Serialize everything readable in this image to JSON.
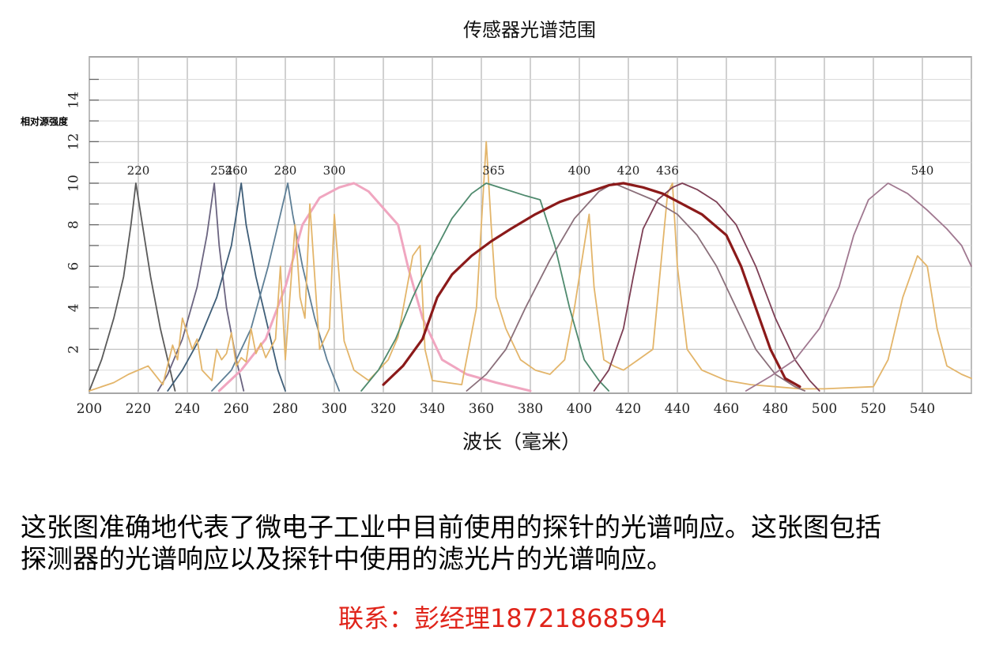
{
  "chart_data": {
    "type": "line",
    "title": "传感器光谱范围",
    "xlabel": "波长（毫米）",
    "ylabel": "相对源强度",
    "x_ticks": [
      "200",
      "220",
      "240",
      "260",
      "280",
      "300",
      "320",
      "340",
      "360",
      "380",
      "400",
      "420",
      "440",
      "460",
      "480",
      "500",
      "520",
      "540"
    ],
    "y_ticks": [
      "2",
      "4",
      "6",
      "8",
      "10",
      "12",
      "14"
    ],
    "xlim": [
      200,
      560
    ],
    "ylim": [
      0,
      15
    ],
    "grid": true,
    "peak_labels": [
      "220",
      "254",
      "260",
      "280",
      "300",
      "365",
      "400",
      "420",
      "436",
      "540"
    ],
    "series": [
      {
        "color": "#5a5a5a",
        "points": [
          [
            200,
            0
          ],
          [
            205,
            1.5
          ],
          [
            210,
            3.5
          ],
          [
            214,
            5.5
          ],
          [
            217,
            8
          ],
          [
            219,
            10
          ],
          [
            221,
            8.5
          ],
          [
            225,
            5.5
          ],
          [
            229,
            3
          ],
          [
            233,
            1
          ],
          [
            235,
            0
          ]
        ]
      },
      {
        "color": "#6b6480",
        "points": [
          [
            228,
            0
          ],
          [
            232,
            0.8
          ],
          [
            238,
            2.5
          ],
          [
            244,
            5
          ],
          [
            248,
            7.5
          ],
          [
            251,
            10
          ],
          [
            253,
            7
          ],
          [
            256,
            4
          ],
          [
            260,
            1.5
          ],
          [
            263,
            0
          ]
        ]
      },
      {
        "color": "#3f5e78",
        "points": [
          [
            232,
            0
          ],
          [
            238,
            1
          ],
          [
            245,
            2.5
          ],
          [
            252,
            4.5
          ],
          [
            258,
            7
          ],
          [
            262,
            10
          ],
          [
            264,
            8
          ],
          [
            268,
            5.5
          ],
          [
            273,
            3
          ],
          [
            277,
            1
          ],
          [
            280,
            0
          ]
        ]
      },
      {
        "color": "#5e7f96",
        "points": [
          [
            250,
            0
          ],
          [
            258,
            1
          ],
          [
            266,
            3
          ],
          [
            273,
            6
          ],
          [
            278,
            8.5
          ],
          [
            281,
            10
          ],
          [
            283,
            8.5
          ],
          [
            287,
            6
          ],
          [
            292,
            3.5
          ],
          [
            297,
            1.5
          ],
          [
            302,
            0
          ]
        ]
      },
      {
        "color": "#f0a6c0",
        "points": [
          [
            253,
            0
          ],
          [
            262,
            1
          ],
          [
            272,
            2.5
          ],
          [
            280,
            5
          ],
          [
            287,
            8
          ],
          [
            294,
            9.3
          ],
          [
            302,
            9.8
          ],
          [
            308,
            10
          ],
          [
            314,
            9.6
          ],
          [
            320,
            8.8
          ],
          [
            326,
            8
          ],
          [
            330,
            6
          ],
          [
            336,
            3.5
          ],
          [
            344,
            1.5
          ],
          [
            354,
            0.8
          ],
          [
            366,
            0.4
          ],
          [
            380,
            0
          ]
        ]
      },
      {
        "color": "#e3b56a",
        "points": [
          [
            200,
            0
          ],
          [
            210,
            0.4
          ],
          [
            216,
            0.8
          ],
          [
            224,
            1.2
          ],
          [
            230,
            0.3
          ],
          [
            234,
            2.2
          ],
          [
            236,
            1.5
          ],
          [
            238,
            3.5
          ],
          [
            242,
            2
          ],
          [
            244,
            2.5
          ],
          [
            246,
            1
          ],
          [
            250,
            0.5
          ],
          [
            252,
            2
          ],
          [
            254,
            1.5
          ],
          [
            256,
            1.8
          ],
          [
            258,
            2.8
          ],
          [
            260,
            1.2
          ],
          [
            262,
            1.6
          ],
          [
            264,
            1.4
          ],
          [
            266,
            3
          ],
          [
            268,
            1.8
          ],
          [
            270,
            2.3
          ],
          [
            272,
            1.6
          ],
          [
            276,
            2.5
          ],
          [
            278,
            6
          ],
          [
            280,
            1.5
          ],
          [
            284,
            8
          ],
          [
            286,
            4.5
          ],
          [
            288,
            3.5
          ],
          [
            290,
            9
          ],
          [
            294,
            2
          ],
          [
            298,
            3
          ],
          [
            300,
            8.5
          ],
          [
            304,
            2.4
          ],
          [
            308,
            1
          ],
          [
            314,
            0.5
          ],
          [
            322,
            1.5
          ],
          [
            326,
            2.6
          ],
          [
            332,
            6.5
          ],
          [
            335,
            7
          ],
          [
            337,
            2
          ],
          [
            340,
            0.5
          ],
          [
            346,
            0.4
          ],
          [
            352,
            0.3
          ],
          [
            358,
            4
          ],
          [
            362,
            12
          ],
          [
            364,
            8
          ],
          [
            366,
            4.5
          ],
          [
            370,
            3
          ],
          [
            376,
            1.5
          ],
          [
            382,
            1
          ],
          [
            388,
            0.8
          ],
          [
            394,
            1.5
          ],
          [
            398,
            4
          ],
          [
            402,
            7
          ],
          [
            404,
            8.5
          ],
          [
            406,
            5
          ],
          [
            410,
            1.5
          ],
          [
            414,
            1.2
          ],
          [
            418,
            1
          ],
          [
            424,
            1.5
          ],
          [
            430,
            2
          ],
          [
            436,
            9.5
          ],
          [
            438,
            10
          ],
          [
            440,
            6
          ],
          [
            444,
            2
          ],
          [
            450,
            1
          ],
          [
            460,
            0.5
          ],
          [
            470,
            0.3
          ],
          [
            480,
            0.2
          ],
          [
            490,
            0.1
          ],
          [
            500,
            0.1
          ],
          [
            520,
            0.2
          ],
          [
            526,
            1.5
          ],
          [
            532,
            4.5
          ],
          [
            538,
            6.5
          ],
          [
            542,
            6
          ],
          [
            546,
            3
          ],
          [
            550,
            1.2
          ],
          [
            556,
            0.8
          ],
          [
            560,
            0.6
          ]
        ]
      },
      {
        "color": "#4f8a6e",
        "points": [
          [
            311,
            0
          ],
          [
            318,
            1
          ],
          [
            325,
            2.5
          ],
          [
            332,
            4.5
          ],
          [
            340,
            6.5
          ],
          [
            348,
            8.3
          ],
          [
            356,
            9.5
          ],
          [
            362,
            10
          ],
          [
            370,
            9.7
          ],
          [
            378,
            9.4
          ],
          [
            384,
            9.2
          ],
          [
            390,
            7
          ],
          [
            396,
            4
          ],
          [
            402,
            1.5
          ],
          [
            408,
            0.5
          ],
          [
            412,
            0
          ]
        ]
      },
      {
        "color": "#8a6f7a",
        "points": [
          [
            354,
            0
          ],
          [
            362,
            0.8
          ],
          [
            370,
            2
          ],
          [
            378,
            4
          ],
          [
            388,
            6.3
          ],
          [
            398,
            8.3
          ],
          [
            408,
            9.6
          ],
          [
            414,
            10
          ],
          [
            420,
            9.7
          ],
          [
            430,
            9.2
          ],
          [
            440,
            8.5
          ],
          [
            448,
            7.5
          ],
          [
            456,
            6
          ],
          [
            464,
            4
          ],
          [
            472,
            2
          ],
          [
            480,
            0.8
          ],
          [
            488,
            0.2
          ],
          [
            492,
            0
          ]
        ]
      },
      {
        "color": "#7d3f55",
        "points": [
          [
            406,
            0
          ],
          [
            412,
            1
          ],
          [
            418,
            3
          ],
          [
            422,
            5.5
          ],
          [
            426,
            7.8
          ],
          [
            432,
            9.2
          ],
          [
            438,
            9.8
          ],
          [
            442,
            10
          ],
          [
            448,
            9.7
          ],
          [
            456,
            9.1
          ],
          [
            464,
            8
          ],
          [
            472,
            6
          ],
          [
            480,
            3.5
          ],
          [
            488,
            1.5
          ],
          [
            494,
            0.5
          ],
          [
            498,
            0
          ]
        ]
      },
      {
        "color": "#8b1a1a",
        "points": [
          [
            320,
            0.3
          ],
          [
            328,
            1.2
          ],
          [
            336,
            2.5
          ],
          [
            342,
            4.5
          ],
          [
            348,
            5.6
          ],
          [
            356,
            6.5
          ],
          [
            364,
            7.2
          ],
          [
            372,
            7.8
          ],
          [
            382,
            8.5
          ],
          [
            392,
            9.1
          ],
          [
            402,
            9.5
          ],
          [
            412,
            9.9
          ],
          [
            418,
            10
          ],
          [
            426,
            9.8
          ],
          [
            434,
            9.5
          ],
          [
            442,
            9
          ],
          [
            450,
            8.5
          ],
          [
            460,
            7.5
          ],
          [
            466,
            6
          ],
          [
            472,
            4
          ],
          [
            478,
            2
          ],
          [
            484,
            0.6
          ],
          [
            490,
            0.2
          ]
        ]
      },
      {
        "color": "#a07890",
        "points": [
          [
            468,
            0
          ],
          [
            478,
            0.7
          ],
          [
            488,
            1.5
          ],
          [
            498,
            3
          ],
          [
            506,
            5
          ],
          [
            512,
            7.5
          ],
          [
            518,
            9.2
          ],
          [
            526,
            10
          ],
          [
            534,
            9.5
          ],
          [
            542,
            8.7
          ],
          [
            550,
            7.8
          ],
          [
            556,
            7
          ],
          [
            560,
            6
          ]
        ]
      }
    ]
  },
  "caption_lines": [
    "这张图准确地代表了微电子工业中目前使用的探针的光谱响应。这张图包括",
    "探测器的光谱响应以及探针中使用的滤光片的光谱响应。"
  ],
  "contact": "联系：彭经理18721868594"
}
